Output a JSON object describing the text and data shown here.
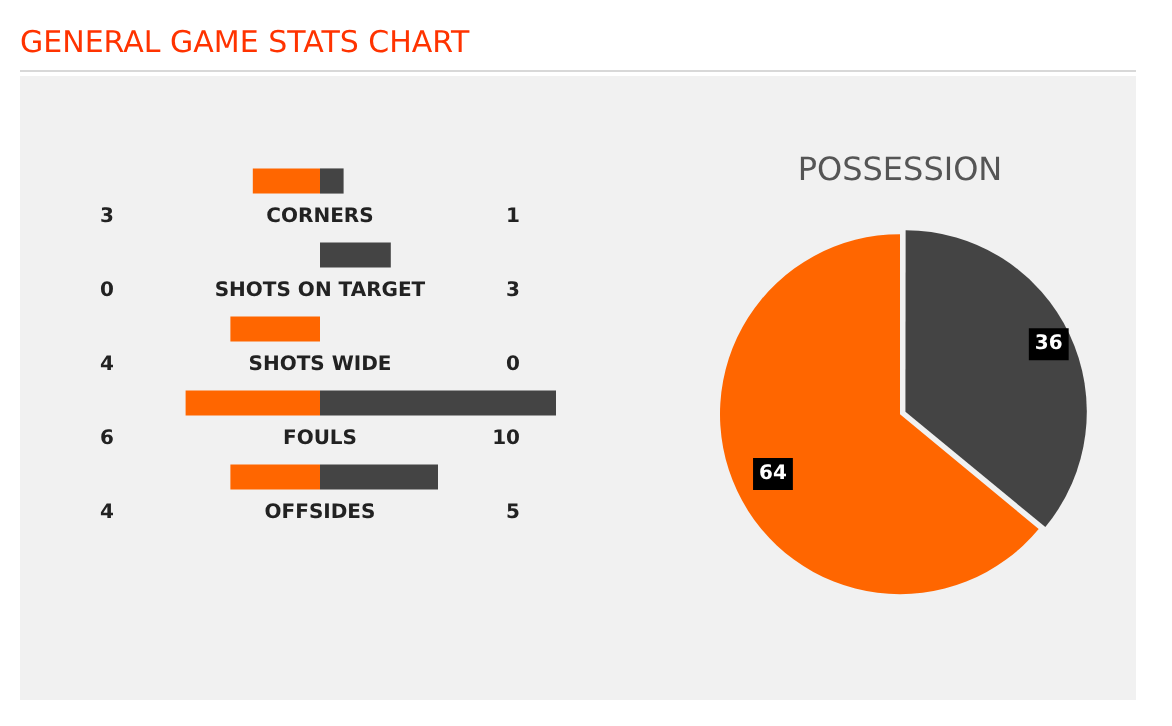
{
  "chart_data": [
    {
      "type": "bar",
      "title": "GENERAL GAME STATS CHART",
      "orientation": "horizontal",
      "categories": [
        "CORNERS",
        "SHOTS ON TARGET",
        "SHOTS WIDE",
        "FOULS",
        "OFFSIDES"
      ],
      "series": [
        {
          "color": "#ff6600",
          "values": [
            3,
            0,
            4,
            6,
            4
          ]
        }
      ],
      "tick_labels": false,
      "data_labels": true
    },
    {
      "type": "bar",
      "orientation": "horizontal",
      "categories": [
        null,
        null,
        null,
        null,
        null
      ],
      "series": [
        {
          "color": "#444444",
          "values": [
            1,
            3,
            0,
            10,
            5
          ]
        }
      ],
      "tick_labels": false,
      "data_labels": true
    },
    {
      "type": "pie",
      "title": "POSSESSION",
      "categories": [
        null,
        null
      ],
      "values": [
        36,
        64
      ],
      "colors": [
        "#444444",
        "#ff6600"
      ],
      "data_labels": true
    }
  ]
}
